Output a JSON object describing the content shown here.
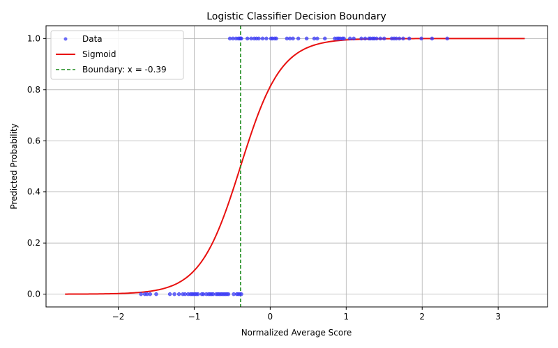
{
  "chart_data": {
    "type": "scatter",
    "title": "Logistic Classifier Decision Boundary",
    "xlabel": "Normalized Average Score",
    "ylabel": "Predicted Probability",
    "xlim": [
      -2.95,
      3.65
    ],
    "ylim": [
      -0.05,
      1.05
    ],
    "xticks": [
      -2,
      -1,
      0,
      1,
      2,
      3
    ],
    "xtick_labels": [
      "−2",
      "−1",
      "0",
      "1",
      "2",
      "3"
    ],
    "yticks": [
      0.0,
      0.2,
      0.4,
      0.6,
      0.8,
      1.0
    ],
    "ytick_labels": [
      "0.0",
      "0.2",
      "0.4",
      "0.6",
      "0.8",
      "1.0"
    ],
    "grid": true,
    "legend_position": "top-left",
    "boundary_x": -0.39,
    "sigmoid": {
      "x_range": [
        -2.7,
        3.35
      ],
      "midpoint": -0.39,
      "steepness": 3.75
    },
    "series": [
      {
        "name": "Data",
        "kind": "scatter",
        "color": "#3b3bf5",
        "x": [
          -1.7,
          -1.65,
          -1.62,
          -1.58,
          -1.5,
          -1.32,
          -1.26,
          -1.2,
          -1.15,
          -1.12,
          -1.08,
          -1.05,
          -1.03,
          -1.01,
          -0.99,
          -0.97,
          -0.95,
          -0.9,
          -0.88,
          -0.84,
          -0.81,
          -0.79,
          -0.77,
          -0.75,
          -0.71,
          -0.69,
          -0.67,
          -0.65,
          -0.63,
          -0.61,
          -0.59,
          -0.57,
          -0.55,
          -0.48,
          -0.44,
          -0.42,
          -0.4,
          -0.38,
          -0.53,
          -0.49,
          -0.45,
          -0.42,
          -0.4,
          -0.39,
          -0.38,
          -0.3,
          -0.25,
          -0.21,
          -0.18,
          -0.15,
          -0.1,
          -0.05,
          0.01,
          0.03,
          0.06,
          0.08,
          0.22,
          0.26,
          0.3,
          0.37,
          0.48,
          0.58,
          0.62,
          0.72,
          0.85,
          0.88,
          0.9,
          0.92,
          0.95,
          0.97,
          1.05,
          1.1,
          1.2,
          1.25,
          1.3,
          1.32,
          1.35,
          1.37,
          1.4,
          1.45,
          1.5,
          1.6,
          1.63,
          1.66,
          1.7,
          1.75,
          1.83,
          1.99,
          2.13,
          2.33
        ],
        "y": [
          0,
          0,
          0,
          0,
          0,
          0,
          0,
          0,
          0,
          0,
          0,
          0,
          0,
          0,
          0,
          0,
          0,
          0,
          0,
          0,
          0,
          0,
          0,
          0,
          0,
          0,
          0,
          0,
          0,
          0,
          0,
          0,
          0,
          0,
          0,
          0,
          0,
          0,
          1,
          1,
          1,
          1,
          1,
          1,
          1,
          1,
          1,
          1,
          1,
          1,
          1,
          1,
          1,
          1,
          1,
          1,
          1,
          1,
          1,
          1,
          1,
          1,
          1,
          1,
          1,
          1,
          1,
          1,
          1,
          1,
          1,
          1,
          1,
          1,
          1,
          1,
          1,
          1,
          1,
          1,
          1,
          1,
          1,
          1,
          1,
          1,
          1,
          1,
          1,
          1
        ]
      },
      {
        "name": "Sigmoid",
        "kind": "line",
        "color": "#e8100f"
      },
      {
        "name": "Boundary: x = -0.39",
        "kind": "dashed-line",
        "color": "#1a8a1a"
      }
    ]
  }
}
